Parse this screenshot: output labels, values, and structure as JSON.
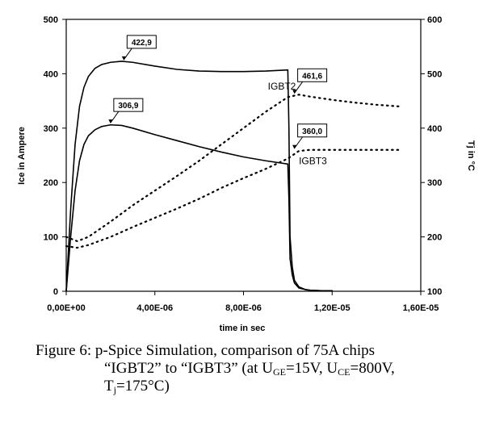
{
  "chart_data": {
    "type": "line",
    "title": "",
    "xlabel": "time in sec",
    "ylabel_left": "Ice in Ampere",
    "ylabel_right": "Tj in °C",
    "xlim": [
      0,
      1.6e-05
    ],
    "ylim_left": [
      0,
      500
    ],
    "ylim_right": [
      100,
      600
    ],
    "x_tick_values": [
      0,
      4e-06,
      8e-06,
      1.2e-05,
      1.6e-05
    ],
    "x_tick_labels": [
      "0,00E+00",
      "4,00E-06",
      "8,00E-06",
      "1,20E-05",
      "1,60E-05"
    ],
    "y_left_ticks": [
      0,
      100,
      200,
      300,
      400,
      500
    ],
    "y_left_tick_labels": [
      "0",
      "100",
      "200",
      "300",
      "400",
      "500"
    ],
    "y_right_ticks": [
      100,
      200,
      300,
      400,
      500,
      600
    ],
    "y_right_tick_labels": [
      "100",
      "200",
      "300",
      "400",
      "500",
      "600"
    ],
    "grid": false,
    "legend": "none",
    "series": [
      {
        "axis": "left",
        "style": "solid",
        "color": "#000000",
        "x": [
          0,
          2e-07,
          4e-07,
          6e-07,
          8e-07,
          1e-06,
          1.3e-06,
          1.6e-06,
          2e-06,
          2.5e-06,
          3e-06,
          4e-06,
          5e-06,
          6e-06,
          7e-06,
          8e-06,
          9e-06,
          1e-05,
          1.005e-05,
          1.01e-05,
          1.02e-05,
          1.03e-05,
          1.05e-05,
          1.08e-05,
          1.1e-05,
          1.15e-05,
          1.2e-05
        ],
        "y": [
          0,
          150,
          270,
          340,
          375,
          395,
          410,
          417,
          421,
          423,
          421,
          414,
          408,
          405,
          404,
          404,
          405,
          407,
          300,
          100,
          45,
          20,
          8,
          3,
          2,
          1,
          1
        ]
      },
      {
        "axis": "left",
        "style": "solid",
        "color": "#000000",
        "x": [
          0,
          2e-07,
          4e-07,
          6e-07,
          8e-07,
          1e-06,
          1.3e-06,
          1.6e-06,
          2e-06,
          2.5e-06,
          3e-06,
          4e-06,
          5e-06,
          6e-06,
          7e-06,
          8e-06,
          9e-06,
          1e-05,
          1.005e-05,
          1.01e-05,
          1.02e-05,
          1.03e-05,
          1.05e-05,
          1.08e-05,
          1.1e-05,
          1.15e-05,
          1.2e-05
        ],
        "y": [
          0,
          100,
          185,
          240,
          270,
          286,
          297,
          303,
          306,
          305,
          300,
          288,
          277,
          266,
          256,
          247,
          240,
          234,
          170,
          60,
          30,
          15,
          6,
          3,
          2,
          1,
          1
        ]
      },
      {
        "axis": "right",
        "style": "dotted",
        "color": "#000000",
        "x": [
          0,
          5e-07,
          1e-06,
          2e-06,
          3e-06,
          4e-06,
          5e-06,
          6e-06,
          7e-06,
          8e-06,
          9e-06,
          1e-05,
          1.05e-05,
          1.1e-05,
          1.2e-05,
          1.3e-05,
          1.4e-05,
          1.5e-05
        ],
        "y": [
          200,
          192,
          200,
          228,
          258,
          285,
          312,
          340,
          370,
          400,
          430,
          457,
          461.6,
          458,
          452,
          447,
          443,
          440
        ]
      },
      {
        "axis": "right",
        "style": "dotted",
        "color": "#000000",
        "x": [
          0,
          5e-07,
          1e-06,
          2e-06,
          3e-06,
          4e-06,
          5e-06,
          6e-06,
          7e-06,
          8e-06,
          9e-06,
          1e-05,
          1.05e-05,
          1.1e-05,
          1.2e-05,
          1.3e-05,
          1.4e-05,
          1.5e-05
        ],
        "y": [
          183,
          180,
          185,
          200,
          218,
          235,
          252,
          270,
          290,
          308,
          325,
          344,
          358,
          360,
          360,
          360,
          360,
          360
        ]
      }
    ],
    "annotations": [
      {
        "text": "422,9",
        "x": 2.6e-06,
        "y": 423,
        "axis": "left"
      },
      {
        "text": "306,9",
        "x": 2e-06,
        "y": 306.9,
        "axis": "left"
      },
      {
        "text": "461,6",
        "x": 1.03e-05,
        "y": 461.6,
        "axis": "right"
      },
      {
        "text": "360,0",
        "x": 1.03e-05,
        "y": 360,
        "axis": "right"
      }
    ],
    "series_labels": [
      {
        "text": "IGBT2",
        "x": 9.1e-06,
        "y": 471,
        "axis": "right"
      },
      {
        "text": "IGBT3",
        "x": 1.05e-05,
        "y": 334,
        "axis": "right"
      }
    ]
  },
  "caption": {
    "line1": "Figure 6: p-Spice Simulation, comparison of 75A chips",
    "line2_part1": "“IGBT2” to “IGBT3” (at U",
    "line2_sub1": "GE",
    "line2_part2": "=15V, U",
    "line2_sub2": "CE",
    "line2_part3": "=800V,",
    "line3_part1": "T",
    "line3_sub1": "j",
    "line3_part2": "=175°C)"
  }
}
